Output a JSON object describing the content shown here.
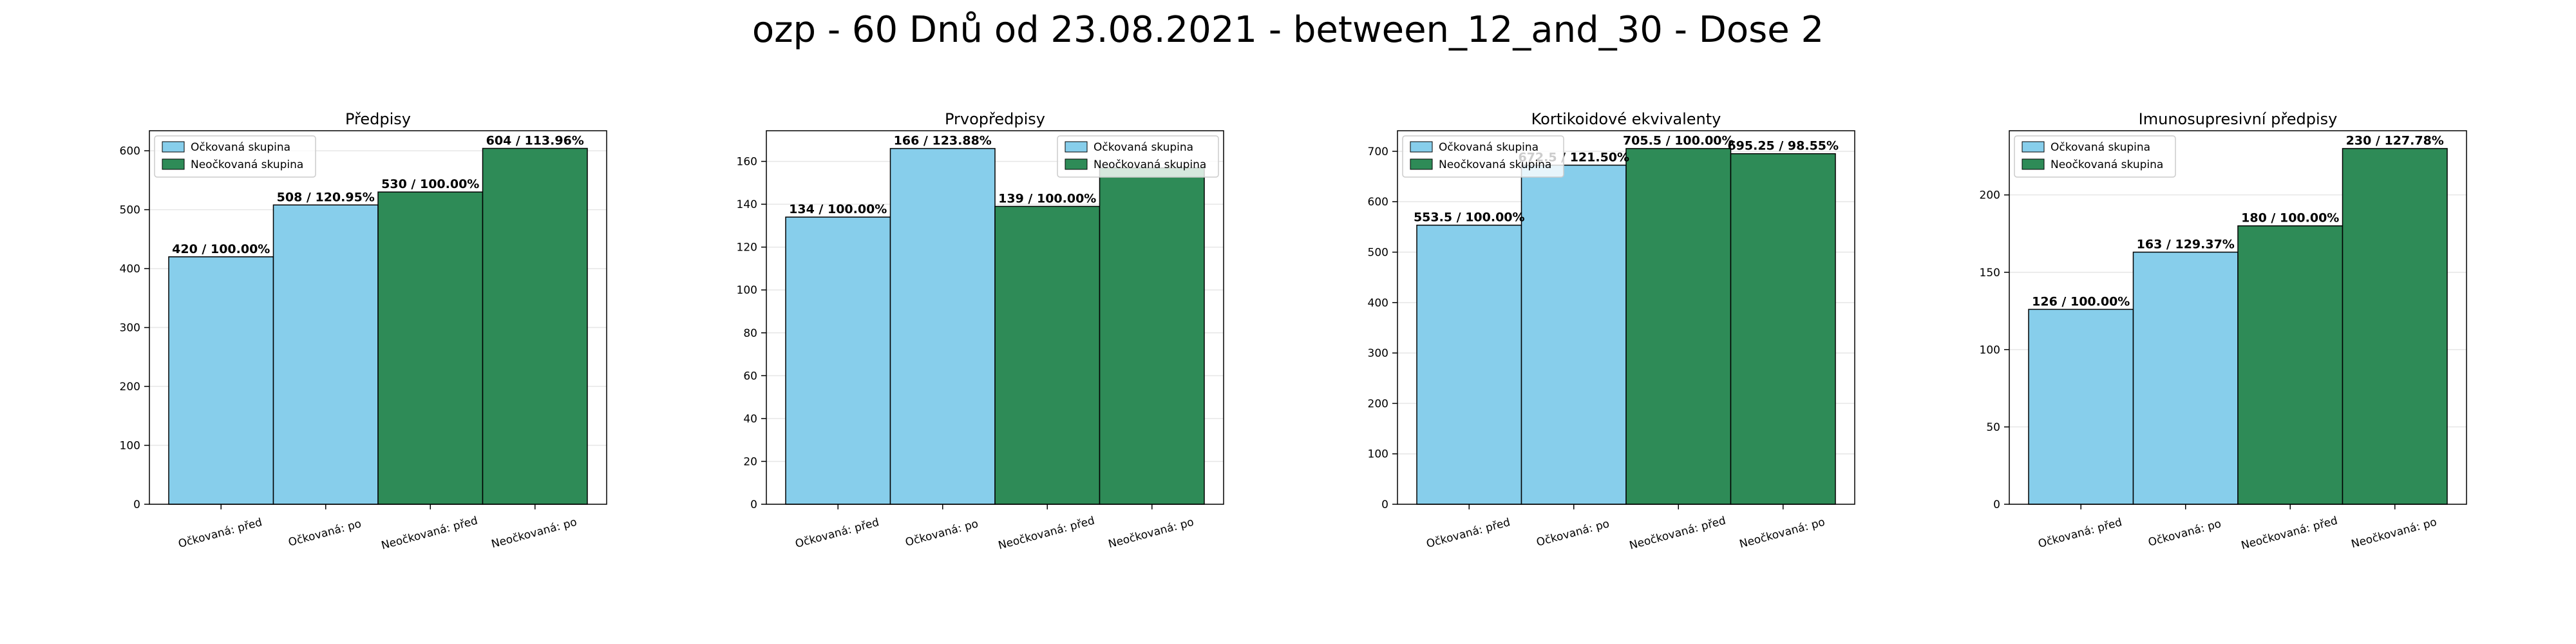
{
  "figure": {
    "suptitle": "ozp - 60 Dnů od 23.08.2021 - between_12_and_30 - Dose 2",
    "colors": {
      "vaccinated": "#87ceeb",
      "unvaccinated": "#2e8b57",
      "edge": "#000000",
      "grid": "#e6e6e6"
    }
  },
  "chart_data": [
    {
      "type": "bar",
      "title": "Předpisy",
      "categories": [
        "Očkovaná: před",
        "Očkovaná: po",
        "Neočkovaná: před",
        "Neočkovaná: po"
      ],
      "values": [
        420,
        508,
        530,
        604
      ],
      "labels": [
        "420 / 100.00%",
        "508 / 120.95%",
        "530 / 100.00%",
        "604 / 113.96%"
      ],
      "groups": [
        "vaccinated",
        "vaccinated",
        "unvaccinated",
        "unvaccinated"
      ],
      "legend": [
        "Očkovaná skupina",
        "Neočkovaná skupina"
      ],
      "legend_position": "top-left",
      "ylim": [
        0,
        634
      ],
      "yticks": [
        0,
        100,
        200,
        300,
        400,
        500,
        600
      ],
      "grid": true
    },
    {
      "type": "bar",
      "title": "Prvopředpisy",
      "categories": [
        "Očkovaná: před",
        "Očkovaná: po",
        "Neočkovaná: před",
        "Neočkovaná: po"
      ],
      "values": [
        134,
        166,
        139,
        157
      ],
      "labels": [
        "134 / 100.00%",
        "166 / 123.88%",
        "139 / 100.00%",
        ""
      ],
      "groups": [
        "vaccinated",
        "vaccinated",
        "unvaccinated",
        "unvaccinated"
      ],
      "legend": [
        "Očkovaná skupina",
        "Neočkovaná skupina"
      ],
      "legend_position": "top-right",
      "ylim": [
        0,
        174.3
      ],
      "yticks": [
        0,
        20,
        40,
        60,
        80,
        100,
        120,
        140,
        160
      ],
      "grid": true
    },
    {
      "type": "bar",
      "title": "Kortikoidové ekvivalenty",
      "categories": [
        "Očkovaná: před",
        "Očkovaná: po",
        "Neočkovaná: před",
        "Neočkovaná: po"
      ],
      "values": [
        553.5,
        672.5,
        705.5,
        695.25
      ],
      "labels": [
        "553.5 / 100.00%",
        "672.5 / 121.50%",
        "705.5 / 100.00%",
        "695.25 / 98.55%"
      ],
      "groups": [
        "vaccinated",
        "vaccinated",
        "unvaccinated",
        "unvaccinated"
      ],
      "legend": [
        "Očkovaná skupina",
        "Neočkovaná skupina"
      ],
      "legend_position": "top-left",
      "ylim": [
        0,
        740.8
      ],
      "yticks": [
        0,
        100,
        200,
        300,
        400,
        500,
        600,
        700
      ],
      "grid": true
    },
    {
      "type": "bar",
      "title": "Imunosupresivní předpisy",
      "categories": [
        "Očkovaná: před",
        "Očkovaná: po",
        "Neočkovaná: před",
        "Neočkovaná: po"
      ],
      "values": [
        126,
        163,
        180,
        230
      ],
      "labels": [
        "126 / 100.00%",
        "163 / 129.37%",
        "180 / 100.00%",
        "230 / 127.78%"
      ],
      "groups": [
        "vaccinated",
        "vaccinated",
        "unvaccinated",
        "unvaccinated"
      ],
      "legend": [
        "Očkovaná skupina",
        "Neočkovaná skupina"
      ],
      "legend_position": "top-left",
      "ylim": [
        0,
        241.5
      ],
      "yticks": [
        0,
        50,
        100,
        150,
        200
      ],
      "grid": true
    }
  ]
}
